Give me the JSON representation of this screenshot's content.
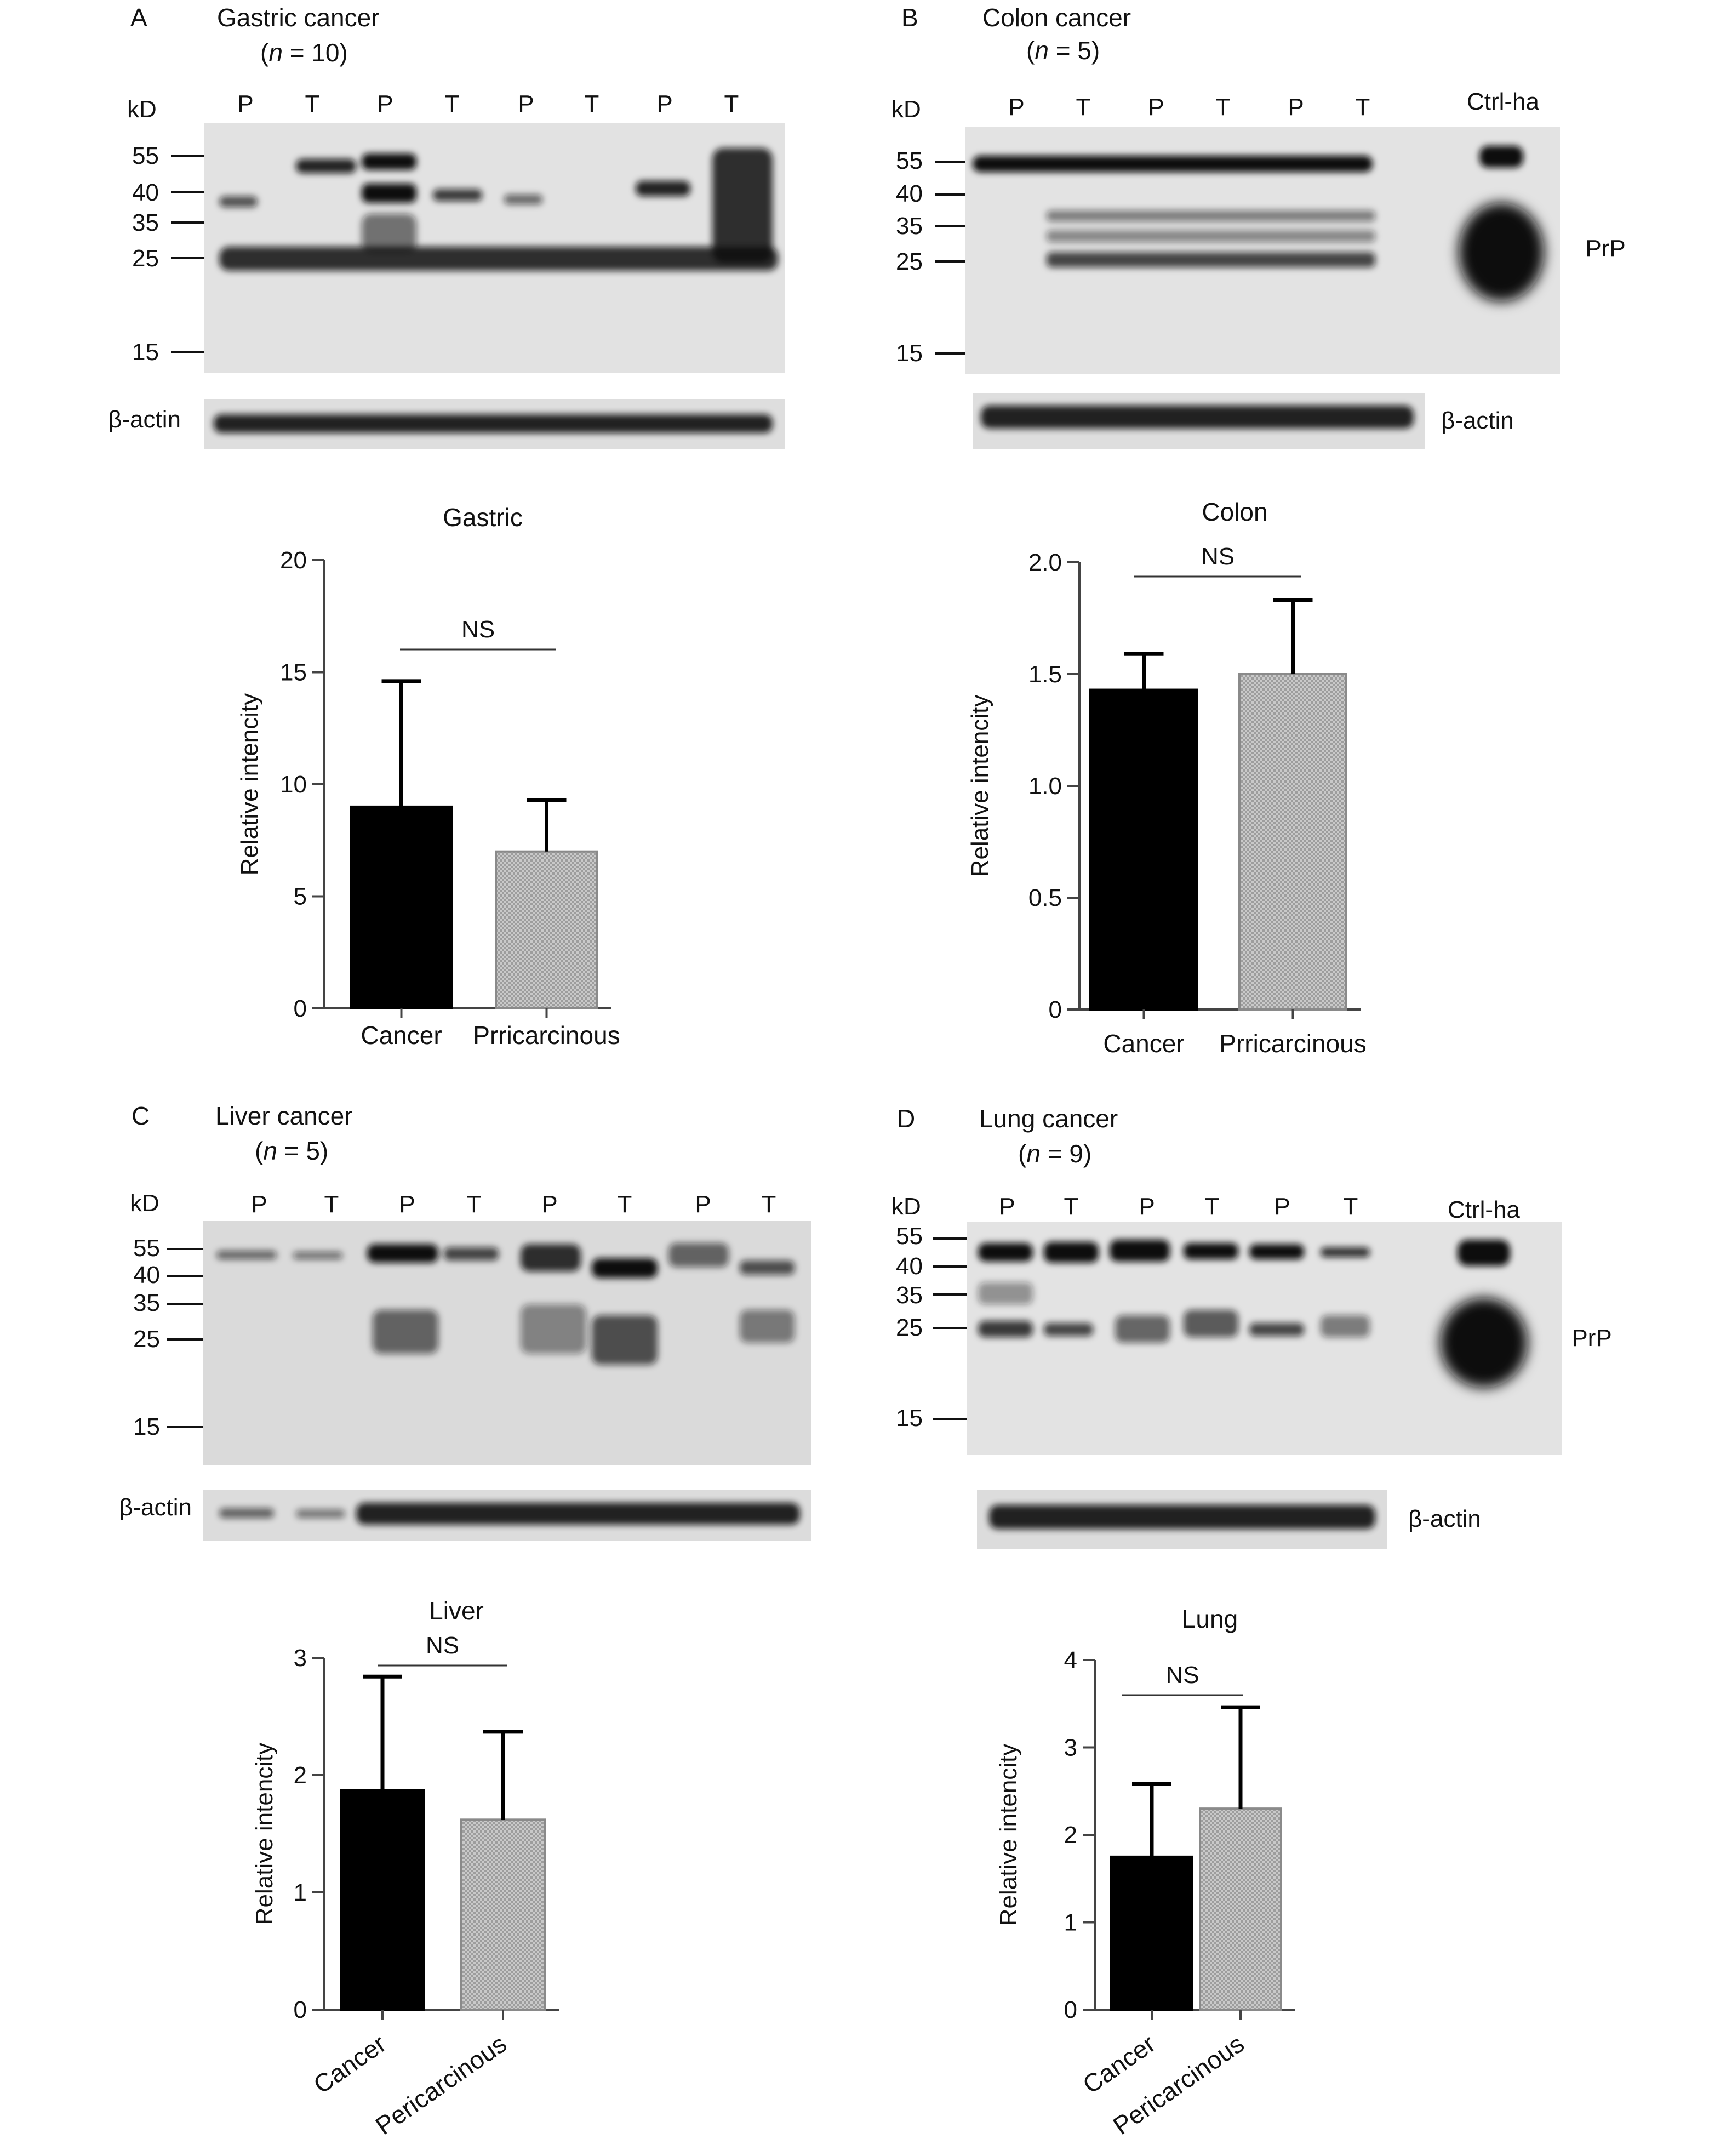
{
  "panels": [
    {
      "letter": "A",
      "title": "Gastric cancer",
      "n_prefix": "(",
      "n_italic": "n",
      "n_suffix": " = 10)",
      "kd_label": "kD",
      "markers": [
        "55",
        "40",
        "35",
        "25",
        "15"
      ],
      "lanes": [
        "P",
        "T",
        "P",
        "T",
        "P",
        "T",
        "P",
        "T"
      ],
      "actin_label": "β-actin",
      "extra_labels": []
    },
    {
      "letter": "B",
      "title": "Colon cancer",
      "n_prefix": "(",
      "n_italic": "n",
      "n_suffix": " = 5)",
      "kd_label": "kD",
      "markers": [
        "55",
        "40",
        "35",
        "25",
        "15"
      ],
      "lanes": [
        "P",
        "T",
        "P",
        "T",
        "P",
        "T"
      ],
      "actin_label": "β-actin",
      "extra_labels": [
        "Ctrl-ha",
        "PrP"
      ]
    },
    {
      "letter": "C",
      "title": "Liver cancer",
      "n_prefix": "(",
      "n_italic": "n",
      "n_suffix": " = 5)",
      "kd_label": "kD",
      "markers": [
        "55",
        "40",
        "35",
        "25",
        "15"
      ],
      "lanes": [
        "P",
        "T",
        "P",
        "T",
        "P",
        "T",
        "P",
        "T"
      ],
      "actin_label": "β-actin",
      "extra_labels": []
    },
    {
      "letter": "D",
      "title": "Lung cancer",
      "n_prefix": "(",
      "n_italic": "n",
      "n_suffix": " = 9)",
      "kd_label": "kD",
      "markers": [
        "55",
        "40",
        "35",
        "25",
        "15"
      ],
      "lanes": [
        "P",
        "T",
        "P",
        "T",
        "P",
        "T"
      ],
      "actin_label": "β-actin",
      "extra_labels": [
        "Ctrl-ha",
        "PrP"
      ]
    }
  ],
  "chart_data": [
    {
      "type": "bar",
      "title": "Gastric",
      "categories": [
        "Cancer",
        "Prricarcinous"
      ],
      "values": [
        9.0,
        7.0
      ],
      "errors": [
        5.6,
        2.3
      ],
      "ylabel": "Relative intencity",
      "ylim": [
        0,
        20
      ],
      "yticks": [
        "0",
        "5",
        "10",
        "15",
        "20"
      ],
      "annotation": "NS",
      "colors": [
        "#000000",
        "#b8b8b8"
      ]
    },
    {
      "type": "bar",
      "title": "Colon",
      "categories": [
        "Cancer",
        "Prricarcinous"
      ],
      "values": [
        1.43,
        1.5
      ],
      "errors": [
        0.16,
        0.33
      ],
      "ylabel": "Relative intencity",
      "ylim": [
        0,
        2.0
      ],
      "yticks": [
        "0",
        "0.5",
        "1.0",
        "1.5",
        "2.0"
      ],
      "annotation": "NS",
      "colors": [
        "#000000",
        "#b8b8b8"
      ]
    },
    {
      "type": "bar",
      "title": "Liver",
      "categories": [
        "Cancer",
        "Pericarcinous"
      ],
      "values": [
        1.87,
        1.62
      ],
      "errors": [
        0.97,
        0.75
      ],
      "ylabel": "Relative intencity",
      "ylim": [
        0,
        3
      ],
      "yticks": [
        "0",
        "1",
        "2",
        "3"
      ],
      "annotation": "NS",
      "colors": [
        "#000000",
        "#b8b8b8"
      ]
    },
    {
      "type": "bar",
      "title": "Lung",
      "categories": [
        "Cancer",
        "Pericarcinous"
      ],
      "values": [
        1.75,
        2.3
      ],
      "errors": [
        0.83,
        1.16
      ],
      "ylabel": "Relative intencity",
      "ylim": [
        0,
        4
      ],
      "yticks": [
        "0",
        "1",
        "2",
        "3",
        "4"
      ],
      "annotation": "NS",
      "colors": [
        "#000000",
        "#b8b8b8"
      ]
    }
  ]
}
